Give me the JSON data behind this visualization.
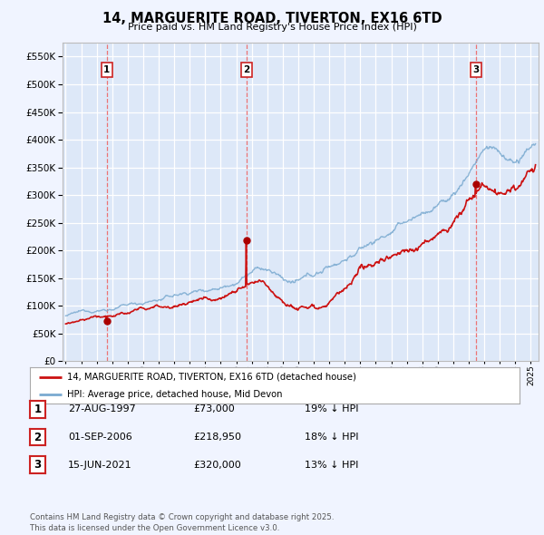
{
  "title": "14, MARGUERITE ROAD, TIVERTON, EX16 6TD",
  "subtitle": "Price paid vs. HM Land Registry's House Price Index (HPI)",
  "ylim": [
    0,
    575000
  ],
  "yticks": [
    0,
    50000,
    100000,
    150000,
    200000,
    250000,
    300000,
    350000,
    400000,
    450000,
    500000,
    550000
  ],
  "ytick_labels": [
    "£0",
    "£50K",
    "£100K",
    "£150K",
    "£200K",
    "£250K",
    "£300K",
    "£350K",
    "£400K",
    "£450K",
    "£500K",
    "£550K"
  ],
  "background_color": "#f0f4ff",
  "plot_bg_color": "#dde8f8",
  "grid_color": "#ffffff",
  "hpi_line_color": "#7aaad0",
  "price_line_color": "#cc1111",
  "marker_color": "#aa0000",
  "vline_color": "#ee6666",
  "sale_points": [
    {
      "date_num": 1997.65,
      "price": 73000,
      "label": "1"
    },
    {
      "date_num": 2006.67,
      "price": 218950,
      "label": "2"
    },
    {
      "date_num": 2021.45,
      "price": 320000,
      "label": "3"
    }
  ],
  "legend_entries": [
    "14, MARGUERITE ROAD, TIVERTON, EX16 6TD (detached house)",
    "HPI: Average price, detached house, Mid Devon"
  ],
  "table_rows": [
    {
      "num": "1",
      "date": "27-AUG-1997",
      "price": "£73,000",
      "hpi": "19% ↓ HPI"
    },
    {
      "num": "2",
      "date": "01-SEP-2006",
      "price": "£218,950",
      "hpi": "18% ↓ HPI"
    },
    {
      "num": "3",
      "date": "15-JUN-2021",
      "price": "£320,000",
      "hpi": "13% ↓ HPI"
    }
  ],
  "footer": "Contains HM Land Registry data © Crown copyright and database right 2025.\nThis data is licensed under the Open Government Licence v3.0.",
  "xmin": 1994.8,
  "xmax": 2025.5
}
